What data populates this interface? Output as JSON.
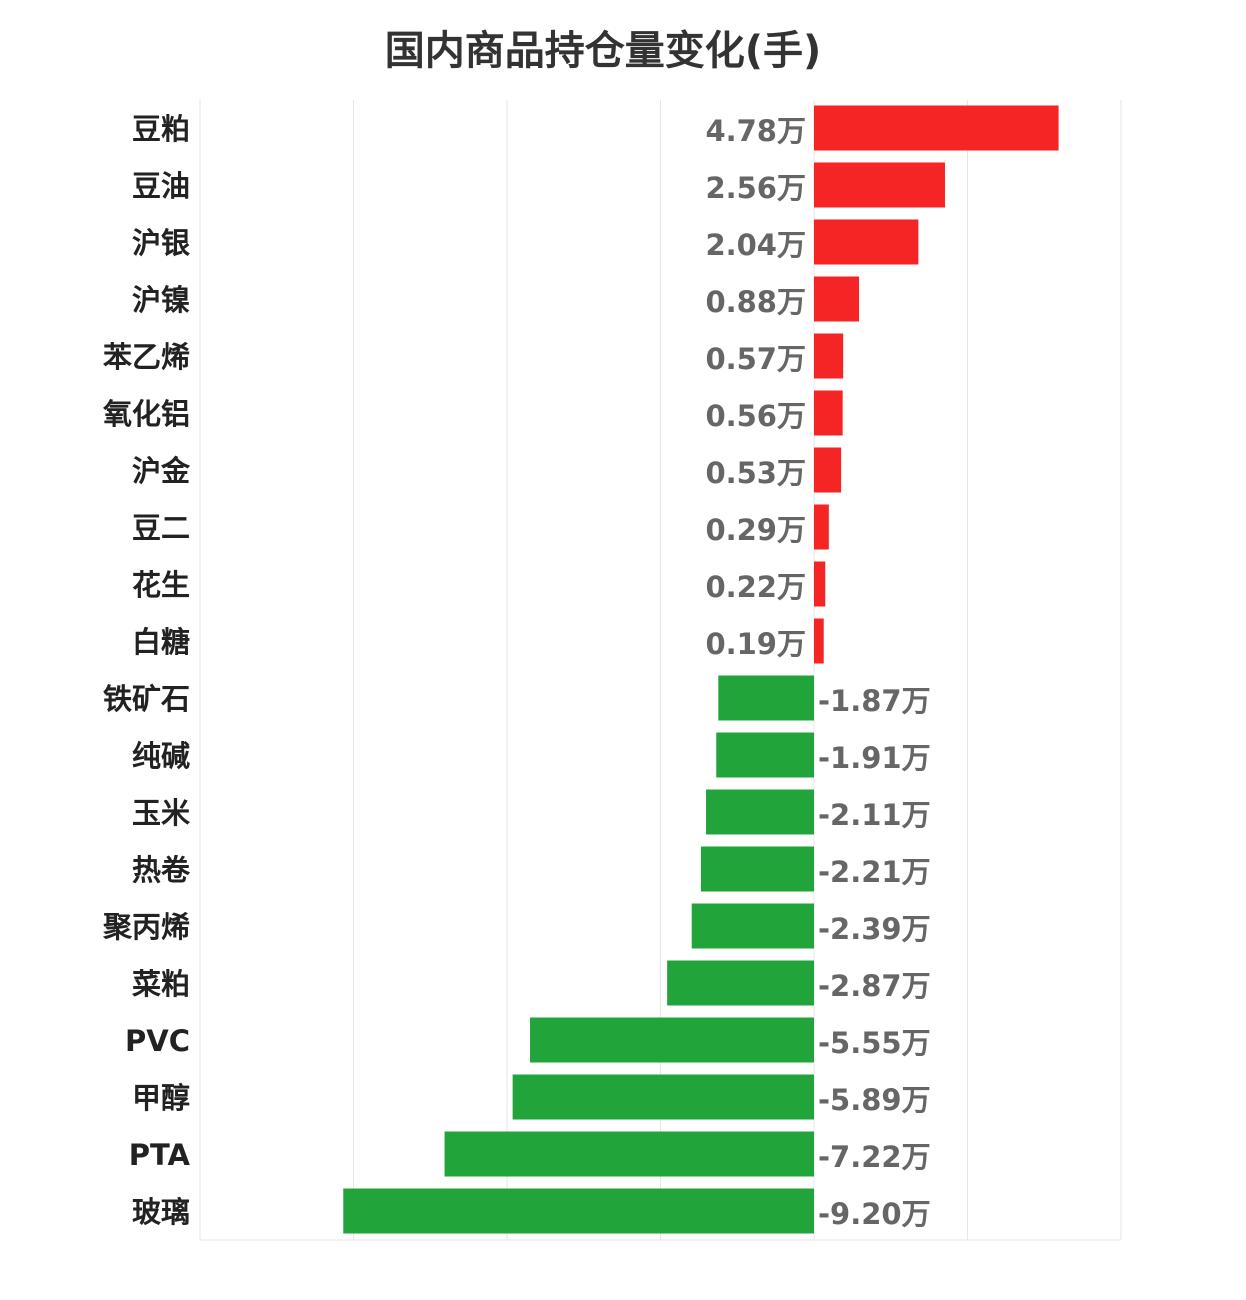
{
  "chart_data": {
    "type": "bar",
    "orientation": "horizontal",
    "title": "国内商品持仓量变化(手)",
    "categories": [
      "豆粕",
      "豆油",
      "沪银",
      "沪镍",
      "苯乙烯",
      "氧化铝",
      "沪金",
      "豆二",
      "花生",
      "白糖",
      "铁矿石",
      "纯碱",
      "玉米",
      "热卷",
      "聚丙烯",
      "菜粕",
      "PVC",
      "甲醇",
      "PTA",
      "玻璃"
    ],
    "values": [
      4.78,
      2.56,
      2.04,
      0.88,
      0.57,
      0.56,
      0.53,
      0.29,
      0.22,
      0.19,
      -1.87,
      -1.91,
      -2.11,
      -2.21,
      -2.39,
      -2.87,
      -5.55,
      -5.89,
      -7.22,
      -9.2
    ],
    "value_labels": [
      "4.78万",
      "2.56万",
      "2.04万",
      "0.88万",
      "0.57万",
      "0.56万",
      "0.53万",
      "0.29万",
      "0.22万",
      "0.19万",
      "-1.87万",
      "-1.91万",
      "-2.11万",
      "-2.21万",
      "-2.39万",
      "-2.87万",
      "-5.55万",
      "-5.89万",
      "-7.22万",
      "-9.20万"
    ],
    "unit": "万",
    "xlim": [
      -12,
      6
    ],
    "grid": true,
    "colors": {
      "positive": "#f62525",
      "negative": "#21a43a",
      "grid": "#e6e6e6"
    }
  }
}
